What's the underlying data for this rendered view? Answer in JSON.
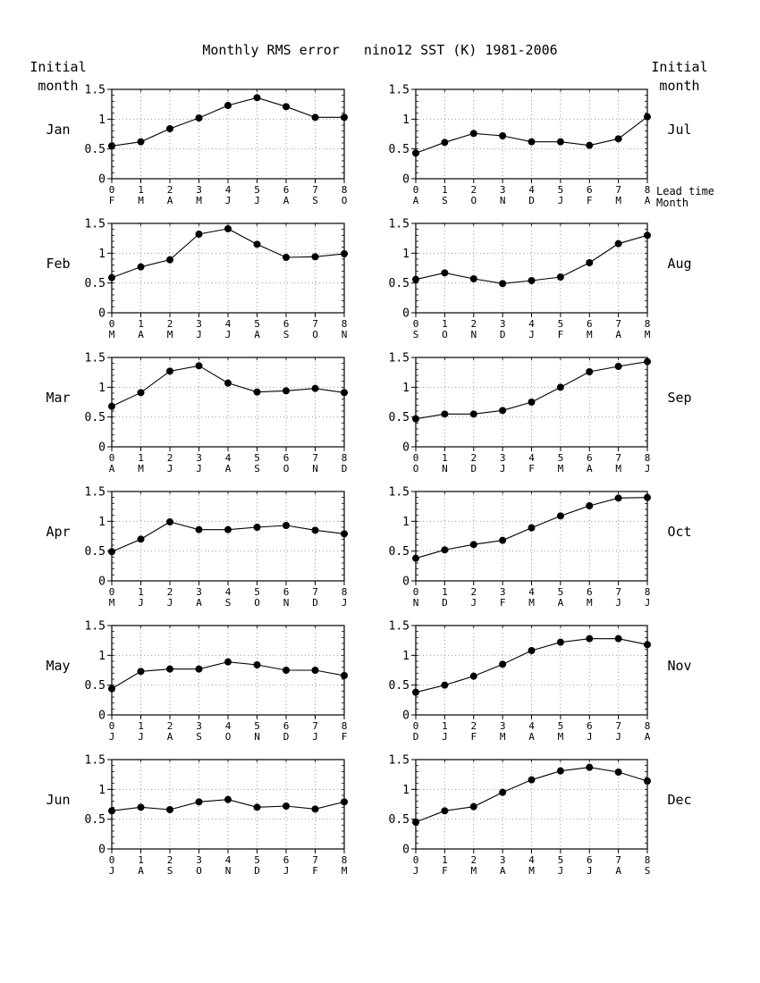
{
  "figure": {
    "title": "Monthly RMS error   nino12 SST (K) 1981-2006",
    "left_header": [
      "Initial",
      "month"
    ],
    "right_header": [
      "Initial",
      "month"
    ],
    "lead_time_label": "Lead time",
    "month_label": "Month"
  },
  "colors": {
    "line": "#000000",
    "marker": "#000000",
    "grid": "#999999",
    "background": "#ffffff"
  },
  "chart_data": [
    {
      "type": "line",
      "panel_label": "Jan",
      "column": "left",
      "row": 0,
      "x": [
        0,
        1,
        2,
        3,
        4,
        5,
        6,
        7,
        8
      ],
      "x_tick_labels": [
        "0",
        "1",
        "2",
        "3",
        "4",
        "5",
        "6",
        "7",
        "8"
      ],
      "month_tick_labels": [
        "F",
        "M",
        "A",
        "M",
        "J",
        "J",
        "A",
        "S",
        "O"
      ],
      "values": [
        0.55,
        0.62,
        0.84,
        1.02,
        1.23,
        1.36,
        1.21,
        1.03,
        1.03
      ],
      "ylim": [
        0,
        1.5
      ],
      "y_ticks": [
        "0",
        "0.5",
        "1",
        "1.5"
      ],
      "grid": true
    },
    {
      "type": "line",
      "panel_label": "Feb",
      "column": "left",
      "row": 1,
      "x": [
        0,
        1,
        2,
        3,
        4,
        5,
        6,
        7,
        8
      ],
      "x_tick_labels": [
        "0",
        "1",
        "2",
        "3",
        "4",
        "5",
        "6",
        "7",
        "8"
      ],
      "month_tick_labels": [
        "M",
        "A",
        "M",
        "J",
        "J",
        "A",
        "S",
        "O",
        "N"
      ],
      "values": [
        0.59,
        0.77,
        0.89,
        1.32,
        1.41,
        1.15,
        0.93,
        0.94,
        0.99
      ],
      "ylim": [
        0,
        1.5
      ],
      "y_ticks": [
        "0",
        "0.5",
        "1",
        "1.5"
      ],
      "grid": true
    },
    {
      "type": "line",
      "panel_label": "Mar",
      "column": "left",
      "row": 2,
      "x": [
        0,
        1,
        2,
        3,
        4,
        5,
        6,
        7,
        8
      ],
      "x_tick_labels": [
        "0",
        "1",
        "2",
        "3",
        "4",
        "5",
        "6",
        "7",
        "8"
      ],
      "month_tick_labels": [
        "A",
        "M",
        "J",
        "J",
        "A",
        "S",
        "O",
        "N",
        "D"
      ],
      "values": [
        0.68,
        0.91,
        1.27,
        1.36,
        1.07,
        0.92,
        0.94,
        0.98,
        0.91
      ],
      "ylim": [
        0,
        1.5
      ],
      "y_ticks": [
        "0",
        "0.5",
        "1",
        "1.5"
      ],
      "grid": true
    },
    {
      "type": "line",
      "panel_label": "Apr",
      "column": "left",
      "row": 3,
      "x": [
        0,
        1,
        2,
        3,
        4,
        5,
        6,
        7,
        8
      ],
      "x_tick_labels": [
        "0",
        "1",
        "2",
        "3",
        "4",
        "5",
        "6",
        "7",
        "8"
      ],
      "month_tick_labels": [
        "M",
        "J",
        "J",
        "A",
        "S",
        "O",
        "N",
        "D",
        "J"
      ],
      "values": [
        0.49,
        0.7,
        0.99,
        0.86,
        0.86,
        0.9,
        0.93,
        0.85,
        0.79
      ],
      "ylim": [
        0,
        1.5
      ],
      "y_ticks": [
        "0",
        "0.5",
        "1",
        "1.5"
      ],
      "grid": true
    },
    {
      "type": "line",
      "panel_label": "May",
      "column": "left",
      "row": 4,
      "x": [
        0,
        1,
        2,
        3,
        4,
        5,
        6,
        7,
        8
      ],
      "x_tick_labels": [
        "0",
        "1",
        "2",
        "3",
        "4",
        "5",
        "6",
        "7",
        "8"
      ],
      "month_tick_labels": [
        "J",
        "J",
        "A",
        "S",
        "O",
        "N",
        "D",
        "J",
        "F"
      ],
      "values": [
        0.44,
        0.73,
        0.77,
        0.77,
        0.89,
        0.84,
        0.75,
        0.75,
        0.66
      ],
      "ylim": [
        0,
        1.5
      ],
      "y_ticks": [
        "0",
        "0.5",
        "1",
        "1.5"
      ],
      "grid": true
    },
    {
      "type": "line",
      "panel_label": "Jun",
      "column": "left",
      "row": 5,
      "x": [
        0,
        1,
        2,
        3,
        4,
        5,
        6,
        7,
        8
      ],
      "x_tick_labels": [
        "0",
        "1",
        "2",
        "3",
        "4",
        "5",
        "6",
        "7",
        "8"
      ],
      "month_tick_labels": [
        "J",
        "A",
        "S",
        "O",
        "N",
        "D",
        "J",
        "F",
        "M"
      ],
      "values": [
        0.64,
        0.7,
        0.66,
        0.79,
        0.83,
        0.7,
        0.72,
        0.67,
        0.79
      ],
      "ylim": [
        0,
        1.5
      ],
      "y_ticks": [
        "0",
        "0.5",
        "1",
        "1.5"
      ],
      "grid": true
    },
    {
      "type": "line",
      "panel_label": "Jul",
      "column": "right",
      "row": 0,
      "x": [
        0,
        1,
        2,
        3,
        4,
        5,
        6,
        7,
        8
      ],
      "x_tick_labels": [
        "0",
        "1",
        "2",
        "3",
        "4",
        "5",
        "6",
        "7",
        "8"
      ],
      "month_tick_labels": [
        "A",
        "S",
        "O",
        "N",
        "D",
        "J",
        "F",
        "M",
        "A"
      ],
      "values": [
        0.43,
        0.61,
        0.76,
        0.72,
        0.62,
        0.62,
        0.56,
        0.67,
        1.04
      ],
      "ylim": [
        0,
        1.5
      ],
      "y_ticks": [
        "0",
        "0.5",
        "1",
        "1.5"
      ],
      "grid": true
    },
    {
      "type": "line",
      "panel_label": "Aug",
      "column": "right",
      "row": 1,
      "x": [
        0,
        1,
        2,
        3,
        4,
        5,
        6,
        7,
        8
      ],
      "x_tick_labels": [
        "0",
        "1",
        "2",
        "3",
        "4",
        "5",
        "6",
        "7",
        "8"
      ],
      "month_tick_labels": [
        "S",
        "O",
        "N",
        "D",
        "J",
        "F",
        "M",
        "A",
        "M"
      ],
      "values": [
        0.56,
        0.67,
        0.57,
        0.49,
        0.54,
        0.6,
        0.84,
        1.16,
        1.3
      ],
      "ylim": [
        0,
        1.5
      ],
      "y_ticks": [
        "0",
        "0.5",
        "1",
        "1.5"
      ],
      "grid": true
    },
    {
      "type": "line",
      "panel_label": "Sep",
      "column": "right",
      "row": 2,
      "x": [
        0,
        1,
        2,
        3,
        4,
        5,
        6,
        7,
        8
      ],
      "x_tick_labels": [
        "0",
        "1",
        "2",
        "3",
        "4",
        "5",
        "6",
        "7",
        "8"
      ],
      "month_tick_labels": [
        "O",
        "N",
        "D",
        "J",
        "F",
        "M",
        "A",
        "M",
        "J"
      ],
      "values": [
        0.47,
        0.55,
        0.55,
        0.61,
        0.75,
        1.0,
        1.26,
        1.35,
        1.43
      ],
      "ylim": [
        0,
        1.5
      ],
      "y_ticks": [
        "0",
        "0.5",
        "1",
        "1.5"
      ],
      "grid": true
    },
    {
      "type": "line",
      "panel_label": "Oct",
      "column": "right",
      "row": 3,
      "x": [
        0,
        1,
        2,
        3,
        4,
        5,
        6,
        7,
        8
      ],
      "x_tick_labels": [
        "0",
        "1",
        "2",
        "3",
        "4",
        "5",
        "6",
        "7",
        "8"
      ],
      "month_tick_labels": [
        "N",
        "D",
        "J",
        "F",
        "M",
        "A",
        "M",
        "J",
        "J"
      ],
      "values": [
        0.38,
        0.52,
        0.61,
        0.68,
        0.89,
        1.09,
        1.26,
        1.39,
        1.4
      ],
      "ylim": [
        0,
        1.5
      ],
      "y_ticks": [
        "0",
        "0.5",
        "1",
        "1.5"
      ],
      "grid": true
    },
    {
      "type": "line",
      "panel_label": "Nov",
      "column": "right",
      "row": 4,
      "x": [
        0,
        1,
        2,
        3,
        4,
        5,
        6,
        7,
        8
      ],
      "x_tick_labels": [
        "0",
        "1",
        "2",
        "3",
        "4",
        "5",
        "6",
        "7",
        "8"
      ],
      "month_tick_labels": [
        "D",
        "J",
        "F",
        "M",
        "A",
        "M",
        "J",
        "J",
        "A"
      ],
      "values": [
        0.38,
        0.5,
        0.65,
        0.85,
        1.08,
        1.22,
        1.28,
        1.28,
        1.18
      ],
      "ylim": [
        0,
        1.5
      ],
      "y_ticks": [
        "0",
        "0.5",
        "1",
        "1.5"
      ],
      "grid": true
    },
    {
      "type": "line",
      "panel_label": "Dec",
      "column": "right",
      "row": 5,
      "x": [
        0,
        1,
        2,
        3,
        4,
        5,
        6,
        7,
        8
      ],
      "x_tick_labels": [
        "0",
        "1",
        "2",
        "3",
        "4",
        "5",
        "6",
        "7",
        "8"
      ],
      "month_tick_labels": [
        "J",
        "F",
        "M",
        "A",
        "M",
        "J",
        "J",
        "A",
        "S"
      ],
      "values": [
        0.45,
        0.64,
        0.71,
        0.95,
        1.16,
        1.31,
        1.37,
        1.29,
        1.14
      ],
      "ylim": [
        0,
        1.5
      ],
      "y_ticks": [
        "0",
        "0.5",
        "1",
        "1.5"
      ],
      "grid": true
    }
  ]
}
